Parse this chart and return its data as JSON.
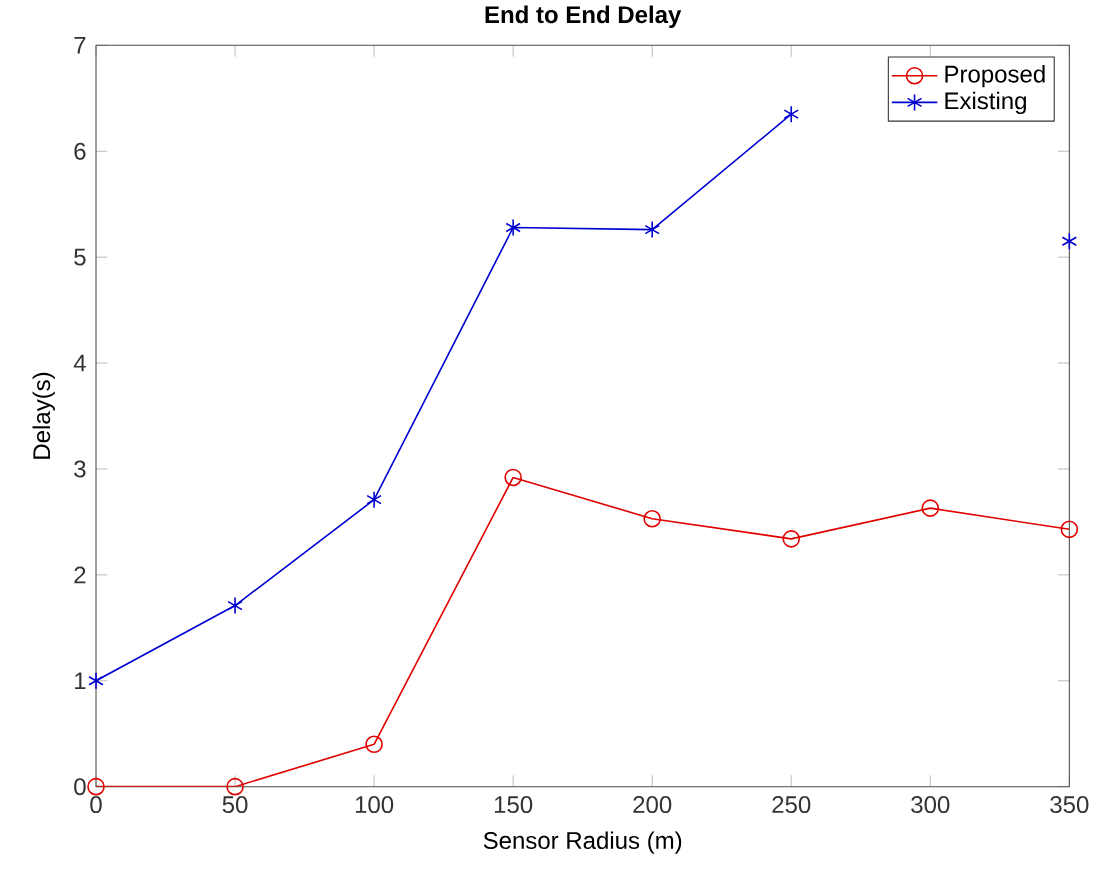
{
  "chart_data": {
    "type": "line",
    "title": "End to End Delay",
    "xlabel": "Sensor Radius (m)",
    "ylabel": "Delay(s)",
    "x": [
      0,
      50,
      100,
      150,
      200,
      250,
      300,
      350
    ],
    "series": [
      {
        "name": "Proposed",
        "color": "#e00000",
        "marker": "circle",
        "values": [
          0,
          0,
          0.4,
          2.92,
          2.53,
          2.34,
          2.63,
          2.43
        ]
      },
      {
        "name": "Existing",
        "color": "#0000d0",
        "marker": "cross",
        "values": [
          1,
          1.71,
          2.71,
          5.28,
          5.26,
          6.35,
          null,
          5.15
        ]
      }
    ],
    "xlim": [
      0,
      350
    ],
    "ylim": [
      0,
      7
    ],
    "xticks": [
      0,
      50,
      100,
      150,
      200,
      250,
      300,
      350
    ],
    "yticks": [
      0,
      1,
      2,
      3,
      4,
      5,
      6,
      7
    ],
    "grid": false,
    "legend": "top right",
    "line_style": "solid"
  }
}
